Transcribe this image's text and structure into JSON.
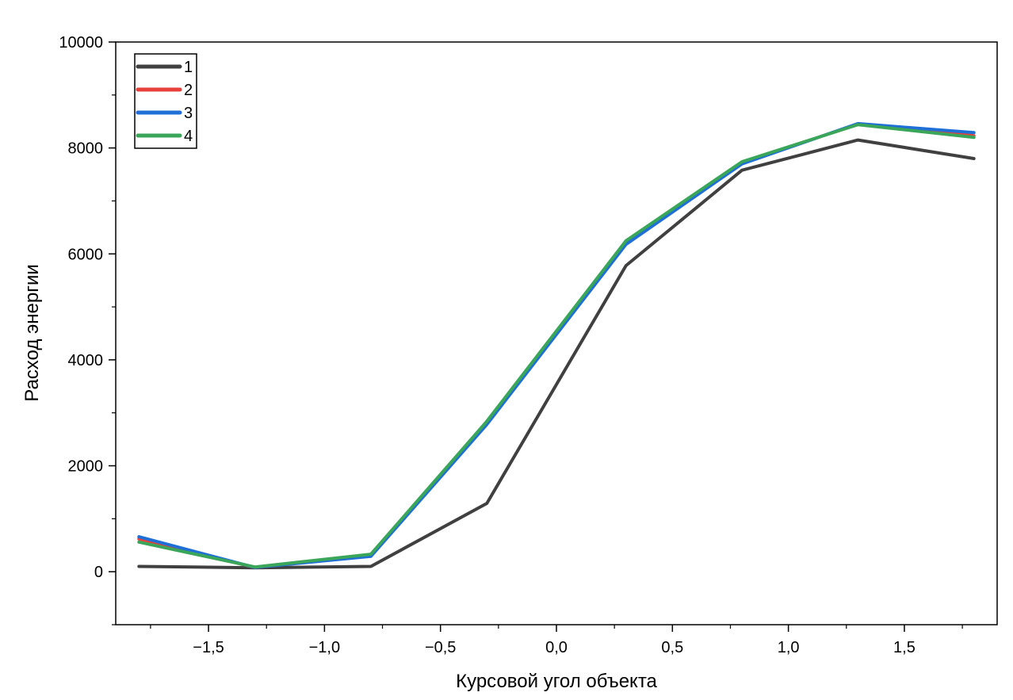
{
  "chart_data": {
    "type": "line",
    "title": "",
    "xlabel": "Курсовой угол объекта",
    "ylabel": "Расход энергии",
    "xlim": [
      -1.9,
      1.9
    ],
    "ylim": [
      -1000,
      10000
    ],
    "x_ticks": [
      -1.5,
      -1.0,
      -0.5,
      0.0,
      0.5,
      1.0,
      1.5
    ],
    "x_tick_labels": [
      "−1,5",
      "−1,0",
      "−0,5",
      "0,0",
      "0,5",
      "1,0",
      "1,5"
    ],
    "y_ticks": [
      0,
      2000,
      4000,
      6000,
      8000,
      10000
    ],
    "y_tick_labels": [
      "0",
      "2000",
      "4000",
      "6000",
      "8000",
      "10000"
    ],
    "legend_position": "top-left",
    "grid": false,
    "x": [
      -1.8,
      -1.3,
      -0.8,
      -0.3,
      0.3,
      0.8,
      1.3,
      1.8
    ],
    "series": [
      {
        "name": "1",
        "color": "#404040",
        "values": [
          100,
          75,
          100,
          1290,
          5780,
          7580,
          8150,
          7800
        ]
      },
      {
        "name": "2",
        "color": "#e8403a",
        "values": [
          620,
          80,
          310,
          2800,
          6200,
          7720,
          8450,
          8230
        ]
      },
      {
        "name": "3",
        "color": "#1f6fd6",
        "values": [
          660,
          80,
          290,
          2780,
          6180,
          7700,
          8460,
          8290
        ]
      },
      {
        "name": "4",
        "color": "#3aa65a",
        "values": [
          560,
          90,
          330,
          2840,
          6250,
          7740,
          8440,
          8200
        ]
      }
    ]
  }
}
